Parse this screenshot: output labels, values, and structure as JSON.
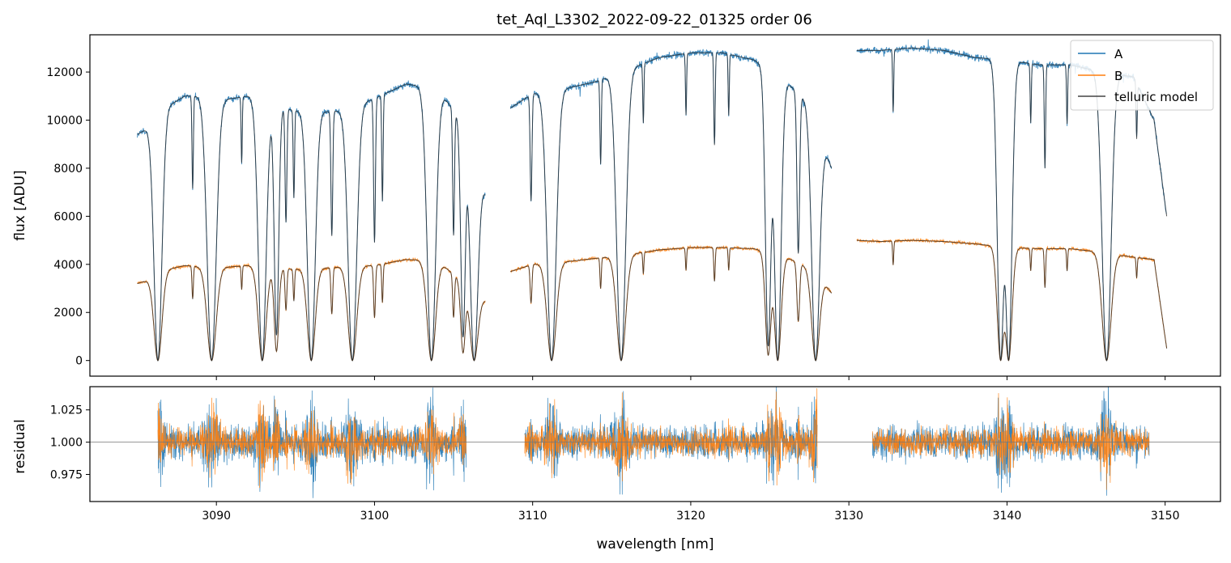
{
  "chart_data": [
    {
      "type": "line",
      "panel": "spectrum",
      "title": "tet_Aql_L3302_2022-09-22_01325  order 06",
      "xlabel": "",
      "ylabel": "flux [ADU]",
      "xlim": [
        3082,
        3153.5
      ],
      "ylim": [
        -650,
        13550
      ],
      "yticks": [
        0,
        2000,
        4000,
        6000,
        8000,
        10000,
        12000
      ],
      "xticks": [
        3090,
        3100,
        3110,
        3120,
        3130,
        3140,
        3150
      ],
      "legend": {
        "position": "top-right",
        "entries": [
          {
            "label": "A",
            "color": "#1f77b4"
          },
          {
            "label": "B",
            "color": "#ff7f0e"
          },
          {
            "label": "telluric model",
            "color": "#444444"
          }
        ]
      },
      "segments": [
        {
          "start": 3085.0,
          "end": 3107.0
        },
        {
          "start": 3108.6,
          "end": 3128.9
        },
        {
          "start": 3130.5,
          "end": 3150.1
        }
      ],
      "continuum_A": [
        [
          3085.0,
          9400
        ],
        [
          3086.0,
          9800
        ],
        [
          3087.0,
          10600
        ],
        [
          3088.0,
          11000
        ],
        [
          3089.0,
          11000
        ],
        [
          3090.0,
          10800
        ],
        [
          3091.0,
          10900
        ],
        [
          3092.0,
          11000
        ],
        [
          3094.0,
          10500
        ],
        [
          3096.0,
          10300
        ],
        [
          3098.0,
          10400
        ],
        [
          3100.0,
          10900
        ],
        [
          3102.0,
          11500
        ],
        [
          3104.0,
          11300
        ],
        [
          3106.0,
          9500
        ],
        [
          3107.0,
          7000
        ],
        [
          3108.6,
          10500
        ],
        [
          3110.0,
          11100
        ],
        [
          3112.0,
          11300
        ],
        [
          3114.0,
          11600
        ],
        [
          3116.0,
          12100
        ],
        [
          3118.0,
          12600
        ],
        [
          3120.0,
          12800
        ],
        [
          3122.0,
          12800
        ],
        [
          3124.0,
          12500
        ],
        [
          3126.0,
          11600
        ],
        [
          3127.5,
          10700
        ],
        [
          3128.9,
          8000
        ],
        [
          3130.5,
          12900
        ],
        [
          3132.0,
          12900
        ],
        [
          3134.0,
          13000
        ],
        [
          3136.0,
          12900
        ],
        [
          3138.0,
          12600
        ],
        [
          3140.0,
          12500
        ],
        [
          3142.0,
          12300
        ],
        [
          3144.0,
          12300
        ],
        [
          3146.0,
          12000
        ],
        [
          3148.0,
          11800
        ],
        [
          3149.3,
          10000
        ],
        [
          3150.1,
          6000
        ]
      ],
      "continuum_B": [
        [
          3085.0,
          3200
        ],
        [
          3086.0,
          3400
        ],
        [
          3087.0,
          3800
        ],
        [
          3088.0,
          3950
        ],
        [
          3090.0,
          3850
        ],
        [
          3092.0,
          3950
        ],
        [
          3094.0,
          3800
        ],
        [
          3096.0,
          3800
        ],
        [
          3098.0,
          3900
        ],
        [
          3100.0,
          3950
        ],
        [
          3102.0,
          4200
        ],
        [
          3104.0,
          4150
        ],
        [
          3106.0,
          3000
        ],
        [
          3107.0,
          2500
        ],
        [
          3108.6,
          3700
        ],
        [
          3110.0,
          4000
        ],
        [
          3112.0,
          4100
        ],
        [
          3114.0,
          4250
        ],
        [
          3116.0,
          4400
        ],
        [
          3118.0,
          4600
        ],
        [
          3120.0,
          4700
        ],
        [
          3122.0,
          4700
        ],
        [
          3124.0,
          4650
        ],
        [
          3126.0,
          4300
        ],
        [
          3128.0,
          3700
        ],
        [
          3128.9,
          2800
        ],
        [
          3130.5,
          5000
        ],
        [
          3132.0,
          4950
        ],
        [
          3134.0,
          5000
        ],
        [
          3136.0,
          4950
        ],
        [
          3138.0,
          4850
        ],
        [
          3140.0,
          4700
        ],
        [
          3142.0,
          4650
        ],
        [
          3144.0,
          4650
        ],
        [
          3146.0,
          4500
        ],
        [
          3148.0,
          4300
        ],
        [
          3149.3,
          4200
        ],
        [
          3150.1,
          500
        ]
      ],
      "absorption_lines": [
        {
          "x": 3086.3,
          "depth": 1.0,
          "width": 0.35
        },
        {
          "x": 3088.5,
          "depth": 0.35,
          "width": 0.06
        },
        {
          "x": 3089.7,
          "depth": 1.0,
          "width": 0.4
        },
        {
          "x": 3091.6,
          "depth": 0.25,
          "width": 0.05
        },
        {
          "x": 3092.9,
          "depth": 1.0,
          "width": 0.35
        },
        {
          "x": 3093.8,
          "depth": 0.9,
          "width": 0.2
        },
        {
          "x": 3094.4,
          "depth": 0.45,
          "width": 0.08
        },
        {
          "x": 3094.9,
          "depth": 0.35,
          "width": 0.06
        },
        {
          "x": 3096.0,
          "depth": 1.0,
          "width": 0.35
        },
        {
          "x": 3097.3,
          "depth": 0.5,
          "width": 0.08
        },
        {
          "x": 3098.6,
          "depth": 1.0,
          "width": 0.38
        },
        {
          "x": 3100.0,
          "depth": 0.55,
          "width": 0.08
        },
        {
          "x": 3100.5,
          "depth": 0.4,
          "width": 0.06
        },
        {
          "x": 3103.6,
          "depth": 1.0,
          "width": 0.38
        },
        {
          "x": 3105.0,
          "depth": 0.5,
          "width": 0.08
        },
        {
          "x": 3105.6,
          "depth": 0.9,
          "width": 0.2
        },
        {
          "x": 3106.3,
          "depth": 1.0,
          "width": 0.35
        },
        {
          "x": 3109.9,
          "depth": 0.4,
          "width": 0.08
        },
        {
          "x": 3111.2,
          "depth": 1.0,
          "width": 0.4
        },
        {
          "x": 3114.3,
          "depth": 0.3,
          "width": 0.06
        },
        {
          "x": 3115.6,
          "depth": 1.0,
          "width": 0.4
        },
        {
          "x": 3117.0,
          "depth": 0.2,
          "width": 0.05
        },
        {
          "x": 3119.7,
          "depth": 0.2,
          "width": 0.05
        },
        {
          "x": 3121.5,
          "depth": 0.3,
          "width": 0.06
        },
        {
          "x": 3122.4,
          "depth": 0.2,
          "width": 0.05
        },
        {
          "x": 3124.9,
          "depth": 0.95,
          "width": 0.25
        },
        {
          "x": 3125.5,
          "depth": 1.0,
          "width": 0.3
        },
        {
          "x": 3126.8,
          "depth": 0.6,
          "width": 0.12
        },
        {
          "x": 3127.9,
          "depth": 1.0,
          "width": 0.35
        },
        {
          "x": 3132.8,
          "depth": 0.2,
          "width": 0.05
        },
        {
          "x": 3139.6,
          "depth": 1.0,
          "width": 0.3
        },
        {
          "x": 3140.1,
          "depth": 1.0,
          "width": 0.3
        },
        {
          "x": 3141.5,
          "depth": 0.2,
          "width": 0.05
        },
        {
          "x": 3142.4,
          "depth": 0.35,
          "width": 0.06
        },
        {
          "x": 3143.8,
          "depth": 0.2,
          "width": 0.05
        },
        {
          "x": 3146.3,
          "depth": 1.0,
          "width": 0.4
        },
        {
          "x": 3148.2,
          "depth": 0.2,
          "width": 0.05
        }
      ]
    },
    {
      "type": "line",
      "panel": "residual",
      "xlabel": "wavelength [nm]",
      "ylabel": "residual",
      "xlim": [
        3082,
        3153.5
      ],
      "ylim": [
        0.954,
        1.043
      ],
      "yticks": [
        0.975,
        1.0,
        1.025
      ],
      "ytick_labels": [
        "0.975",
        "1.000",
        "1.025"
      ],
      "xticks": [
        3090,
        3100,
        3110,
        3120,
        3130,
        3140,
        3150
      ],
      "reference_line": 1.0,
      "segments": [
        {
          "start": 3086.3,
          "end": 3105.8
        },
        {
          "start": 3109.5,
          "end": 3128.0
        },
        {
          "start": 3131.5,
          "end": 3149.0
        }
      ],
      "series": [
        {
          "name": "A",
          "color": "#1f77b4",
          "scatter_amplitude": 0.02
        },
        {
          "name": "B",
          "color": "#ff7f0e",
          "scatter_amplitude": 0.016
        }
      ]
    }
  ]
}
